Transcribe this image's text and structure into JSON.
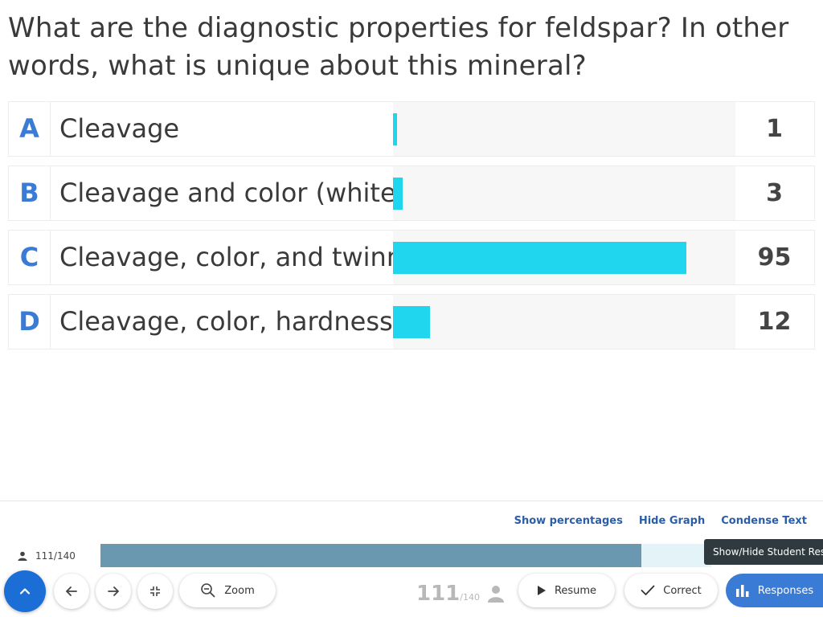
{
  "question": "What are the diagnostic properties for feldspar?  In other words, what is unique about this mineral?",
  "chart_data": {
    "type": "bar",
    "orientation": "horizontal",
    "categories": [
      "A",
      "B",
      "C",
      "D"
    ],
    "labels": [
      "Cleavage",
      "Cleavage and color (white",
      "Cleavage, color, and twinn",
      "Cleavage, color, hardness"
    ],
    "values": [
      1,
      3,
      95,
      12
    ],
    "xlim": [
      0,
      111
    ],
    "bar_color": "#1fd6ee"
  },
  "controls": {
    "show_percentages": "Show percentages",
    "hide_graph": "Hide Graph",
    "condense_text": "Condense Text"
  },
  "progress": {
    "count_label": "111/140",
    "answered": 111,
    "total": 140
  },
  "tooltip": "Show/Hide Student Respon",
  "toolbar": {
    "zoom": "Zoom",
    "count_big": "111",
    "count_small": "/140",
    "resume": "Resume",
    "correct": "Correct",
    "responses": "Responses"
  },
  "colors": {
    "accent": "#3a7bd5",
    "bar": "#1fd6ee",
    "progress": "#6a98b1",
    "link": "#2a5ea8"
  }
}
